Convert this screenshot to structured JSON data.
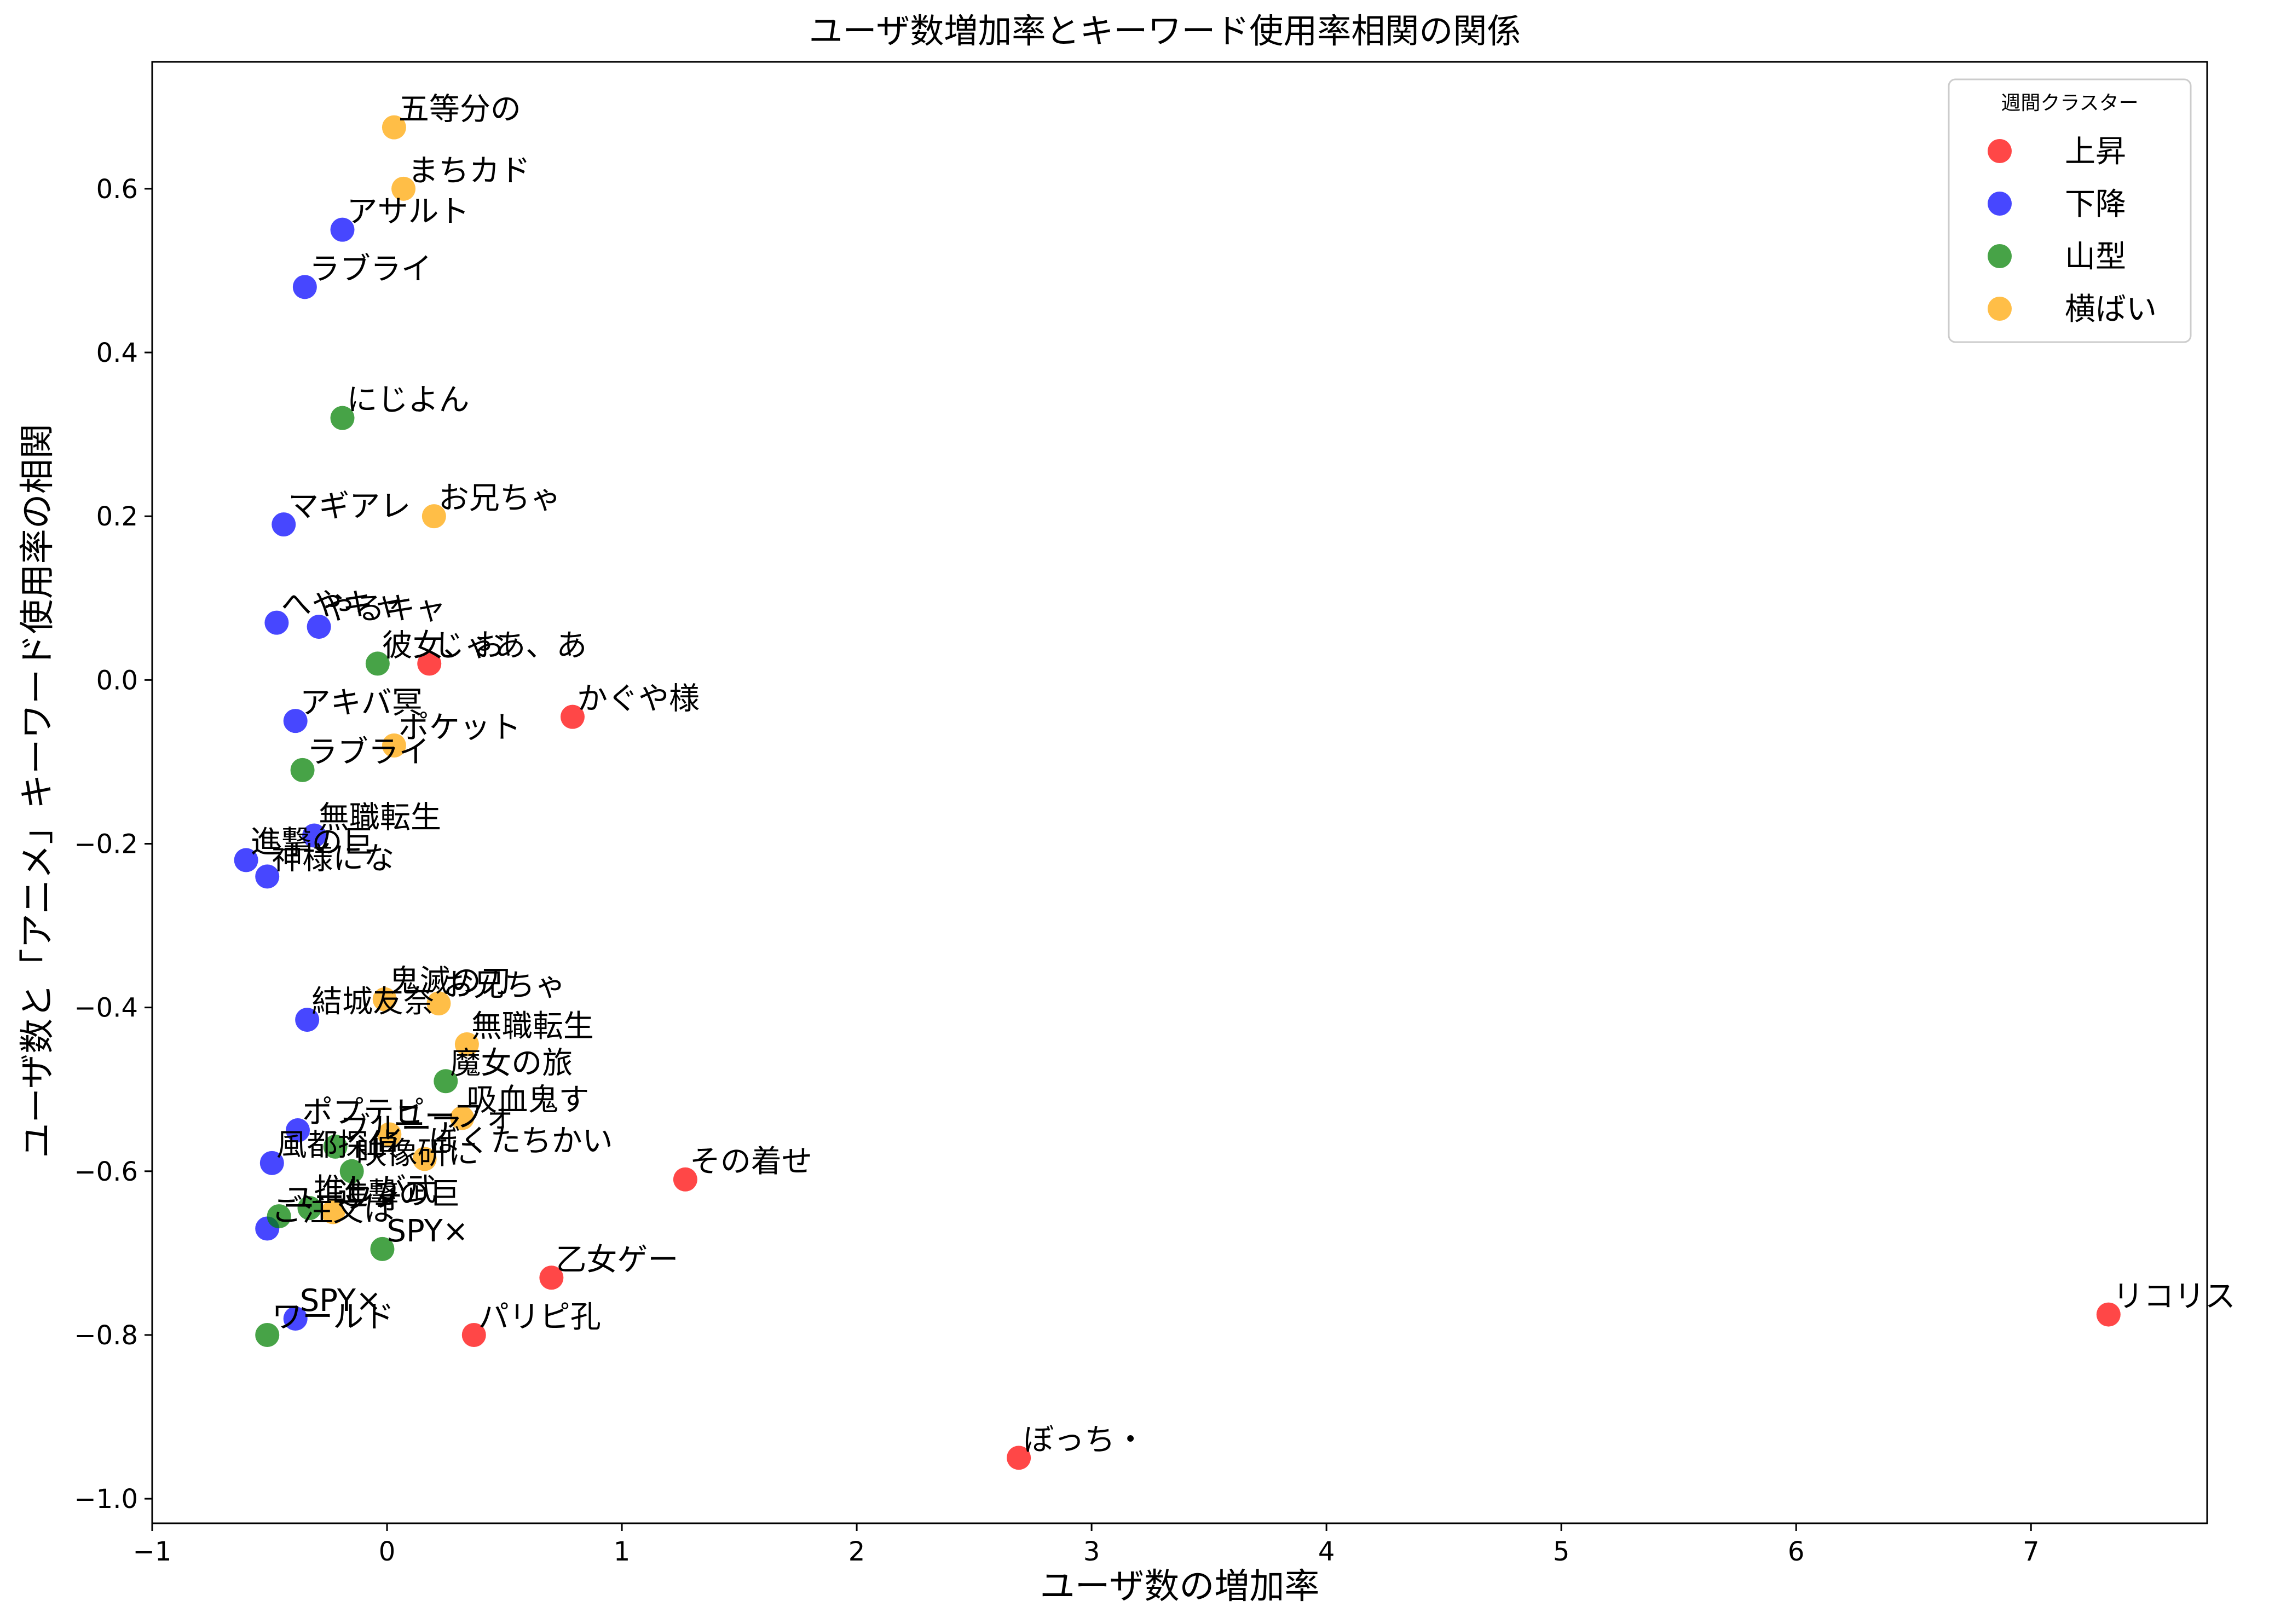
{
  "chart_data": {
    "type": "scatter",
    "title": "ユーザ数増加率とキーワード使用率相関の関係",
    "xlabel": "ユーザ数の増加率",
    "ylabel": "ユーザ数と「アニメ」キーワード使用率の相関",
    "xlim": [
      -1.0,
      7.75
    ],
    "ylim": [
      -1.03,
      0.755
    ],
    "xticks": [
      -1,
      0,
      1,
      2,
      3,
      4,
      5,
      6,
      7
    ],
    "xtick_labels": [
      "−1",
      "0",
      "1",
      "2",
      "3",
      "4",
      "5",
      "6",
      "7"
    ],
    "yticks": [
      -1.0,
      -0.8,
      -0.6,
      -0.4,
      -0.2,
      0.0,
      0.2,
      0.4,
      0.6
    ],
    "ytick_labels": [
      "−1.0",
      "−0.8",
      "−0.6",
      "−0.4",
      "−0.2",
      "0.0",
      "0.2",
      "0.4",
      "0.6"
    ],
    "grid": false,
    "legend": {
      "title": "週間クラスター",
      "placement": "top-right"
    },
    "series": [
      {
        "name": "上昇",
        "color": "#ff0000",
        "points": [
          {
            "x": 0.18,
            "y": 0.02,
            "label": "じゃあ、あ"
          },
          {
            "x": 0.79,
            "y": -0.045,
            "label": "かぐや様"
          },
          {
            "x": 1.27,
            "y": -0.61,
            "label": "その着せ"
          },
          {
            "x": 0.7,
            "y": -0.73,
            "label": "乙女ゲー"
          },
          {
            "x": 0.37,
            "y": -0.8,
            "label": "パリピ孔"
          },
          {
            "x": 2.69,
            "y": -0.95,
            "label": "ぼっち・"
          },
          {
            "x": 7.33,
            "y": -0.775,
            "label": "リコリス"
          }
        ]
      },
      {
        "name": "下降",
        "color": "#0000ff",
        "points": [
          {
            "x": -0.19,
            "y": 0.55,
            "label": "アサルト"
          },
          {
            "x": -0.35,
            "y": 0.48,
            "label": "ラブライ"
          },
          {
            "x": -0.44,
            "y": 0.19,
            "label": "マギアレ"
          },
          {
            "x": -0.47,
            "y": 0.07,
            "label": "へやキャ"
          },
          {
            "x": -0.29,
            "y": 0.065,
            "label": "やるキャ"
          },
          {
            "x": -0.39,
            "y": -0.05,
            "label": "アキバ冥"
          },
          {
            "x": -0.31,
            "y": -0.19,
            "label": "無職転生"
          },
          {
            "x": -0.6,
            "y": -0.22,
            "label": "進撃の巨"
          },
          {
            "x": -0.51,
            "y": -0.24,
            "label": "神様にな"
          },
          {
            "x": -0.34,
            "y": -0.415,
            "label": "結城友奈"
          },
          {
            "x": -0.38,
            "y": -0.55,
            "label": "ポプテピ"
          },
          {
            "x": -0.49,
            "y": -0.59,
            "label": "風都探偵"
          },
          {
            "x": -0.51,
            "y": -0.67,
            "label": "ご注文は"
          },
          {
            "x": -0.39,
            "y": -0.78,
            "label": "SPY×"
          }
        ]
      },
      {
        "name": "山型",
        "color": "#008000",
        "points": [
          {
            "x": -0.19,
            "y": 0.32,
            "label": "にじよん"
          },
          {
            "x": -0.04,
            "y": 0.02,
            "label": "彼女、お"
          },
          {
            "x": -0.36,
            "y": -0.11,
            "label": "ラブライ"
          },
          {
            "x": 0.25,
            "y": -0.49,
            "label": "魔女の旅"
          },
          {
            "x": -0.22,
            "y": -0.57,
            "label": "ブルーア"
          },
          {
            "x": -0.15,
            "y": -0.6,
            "label": "映像研に"
          },
          {
            "x": -0.33,
            "y": -0.645,
            "label": "推しが武"
          },
          {
            "x": -0.46,
            "y": -0.655,
            "label": "ユーフォ"
          },
          {
            "x": -0.02,
            "y": -0.695,
            "label": "SPY×"
          },
          {
            "x": -0.51,
            "y": -0.8,
            "label": "ワールド"
          }
        ]
      },
      {
        "name": "横ばい",
        "color": "#ffa500",
        "points": [
          {
            "x": 0.03,
            "y": 0.675,
            "label": "五等分の"
          },
          {
            "x": 0.07,
            "y": 0.6,
            "label": "まちカド"
          },
          {
            "x": 0.2,
            "y": 0.2,
            "label": "お兄ちゃ"
          },
          {
            "x": 0.03,
            "y": -0.08,
            "label": "ポケット"
          },
          {
            "x": -0.01,
            "y": -0.39,
            "label": "鬼滅の刃"
          },
          {
            "x": 0.22,
            "y": -0.395,
            "label": "お兄ちゃ"
          },
          {
            "x": 0.34,
            "y": -0.445,
            "label": "無職転生"
          },
          {
            "x": 0.32,
            "y": -0.535,
            "label": "吸血鬼す"
          },
          {
            "x": 0.01,
            "y": -0.555,
            "label": "ユーフォ"
          },
          {
            "x": 0.16,
            "y": -0.585,
            "label": "ぼくたちかい"
          },
          {
            "x": -0.23,
            "y": -0.65,
            "label": "進撃の巨"
          }
        ]
      }
    ]
  }
}
